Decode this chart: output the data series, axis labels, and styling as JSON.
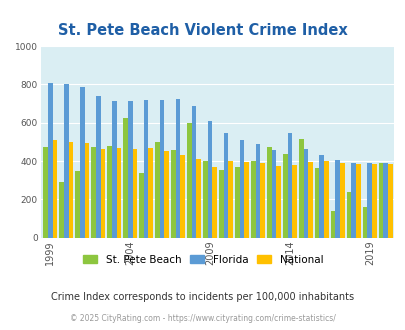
{
  "title": "St. Pete Beach Violent Crime Index",
  "subtitle": "Crime Index corresponds to incidents per 100,000 inhabitants",
  "footer": "© 2025 CityRating.com - https://www.cityrating.com/crime-statistics/",
  "years": [
    1999,
    2000,
    2001,
    2002,
    2003,
    2004,
    2005,
    2006,
    2007,
    2008,
    2009,
    2010,
    2011,
    2012,
    2013,
    2014,
    2015,
    2016,
    2017,
    2018,
    2019,
    2020
  ],
  "st_pete_beach": [
    475,
    290,
    350,
    475,
    480,
    625,
    340,
    500,
    460,
    600,
    400,
    355,
    370,
    400,
    475,
    435,
    515,
    365,
    140,
    240,
    160,
    390
  ],
  "florida": [
    810,
    800,
    785,
    740,
    715,
    715,
    720,
    720,
    725,
    690,
    610,
    545,
    510,
    490,
    460,
    545,
    465,
    430,
    405,
    390,
    390,
    390
  ],
  "national": [
    510,
    500,
    495,
    465,
    470,
    465,
    470,
    455,
    430,
    410,
    370,
    400,
    395,
    390,
    375,
    380,
    395,
    400,
    390,
    385,
    385,
    385
  ],
  "color_green": "#8dc63f",
  "color_blue": "#5b9bd5",
  "color_orange": "#ffc000",
  "bg_color": "#daeef3",
  "title_color": "#1f5fa6",
  "subtitle_color": "#333333",
  "footer_color": "#999999",
  "ylim": [
    0,
    1000
  ],
  "yticks": [
    0,
    200,
    400,
    600,
    800,
    1000
  ],
  "xtick_years": [
    1999,
    2004,
    2009,
    2014,
    2019
  ]
}
